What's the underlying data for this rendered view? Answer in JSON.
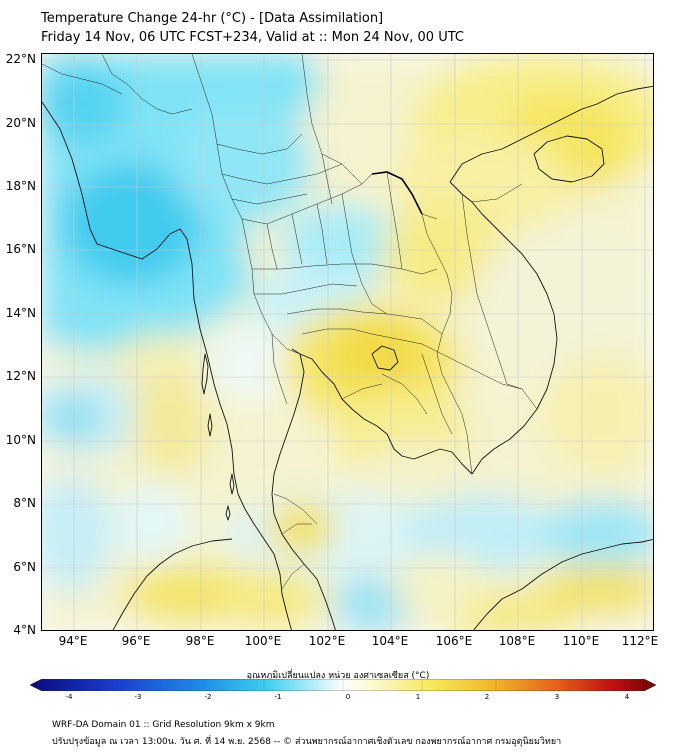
{
  "header": {
    "title": "Temperature Change 24-hr (°C) - [Data Assimilation]",
    "subtitle": "Friday 14 Nov, 06 UTC FCST+234, Valid at :: Mon 24 Nov, 00 UTC"
  },
  "map": {
    "lat_labels": [
      "22°N",
      "20°N",
      "18°N",
      "16°N",
      "14°N",
      "12°N",
      "10°N",
      "8°N",
      "6°N",
      "4°N"
    ],
    "lon_labels": [
      "94°E",
      "96°E",
      "98°E",
      "100°E",
      "102°E",
      "104°E",
      "106°E",
      "108°E",
      "110°E",
      "112°E"
    ],
    "lat_range": [
      4,
      22
    ],
    "lon_range": [
      93,
      112.3
    ],
    "grid": true
  },
  "colorbar": {
    "title": "อุณหภูมิเปลี่ยนแปลง หน่วย องศาเซลเซียส (°C)",
    "ticks": [
      "-4",
      "-3",
      "-2",
      "-1",
      "0",
      "1",
      "2",
      "3",
      "4"
    ],
    "range": [
      -4,
      4
    ],
    "colors": [
      "#0a0a7a",
      "#1a3fd0",
      "#1f8fe8",
      "#3fd0f0",
      "#bff0fb",
      "#ffffff",
      "#fbf7c0",
      "#f6ea5a",
      "#f2b62a",
      "#e6621a",
      "#c01010",
      "#6e0404"
    ]
  },
  "footer": {
    "line1": "WRF-DA Domain 01 :: Grid Resolution 9km x 9km",
    "line2": "ปรับปรุงข้อมูล ณ เวลา 13:00น. วัน ศ. ที่ 14 พ.ย. 2568 -- © ส่วนพยากรณ์อากาศเชิงตัวเลข กองพยากรณ์อากาศ กรมอุตุนิยมวิทยา"
  }
}
